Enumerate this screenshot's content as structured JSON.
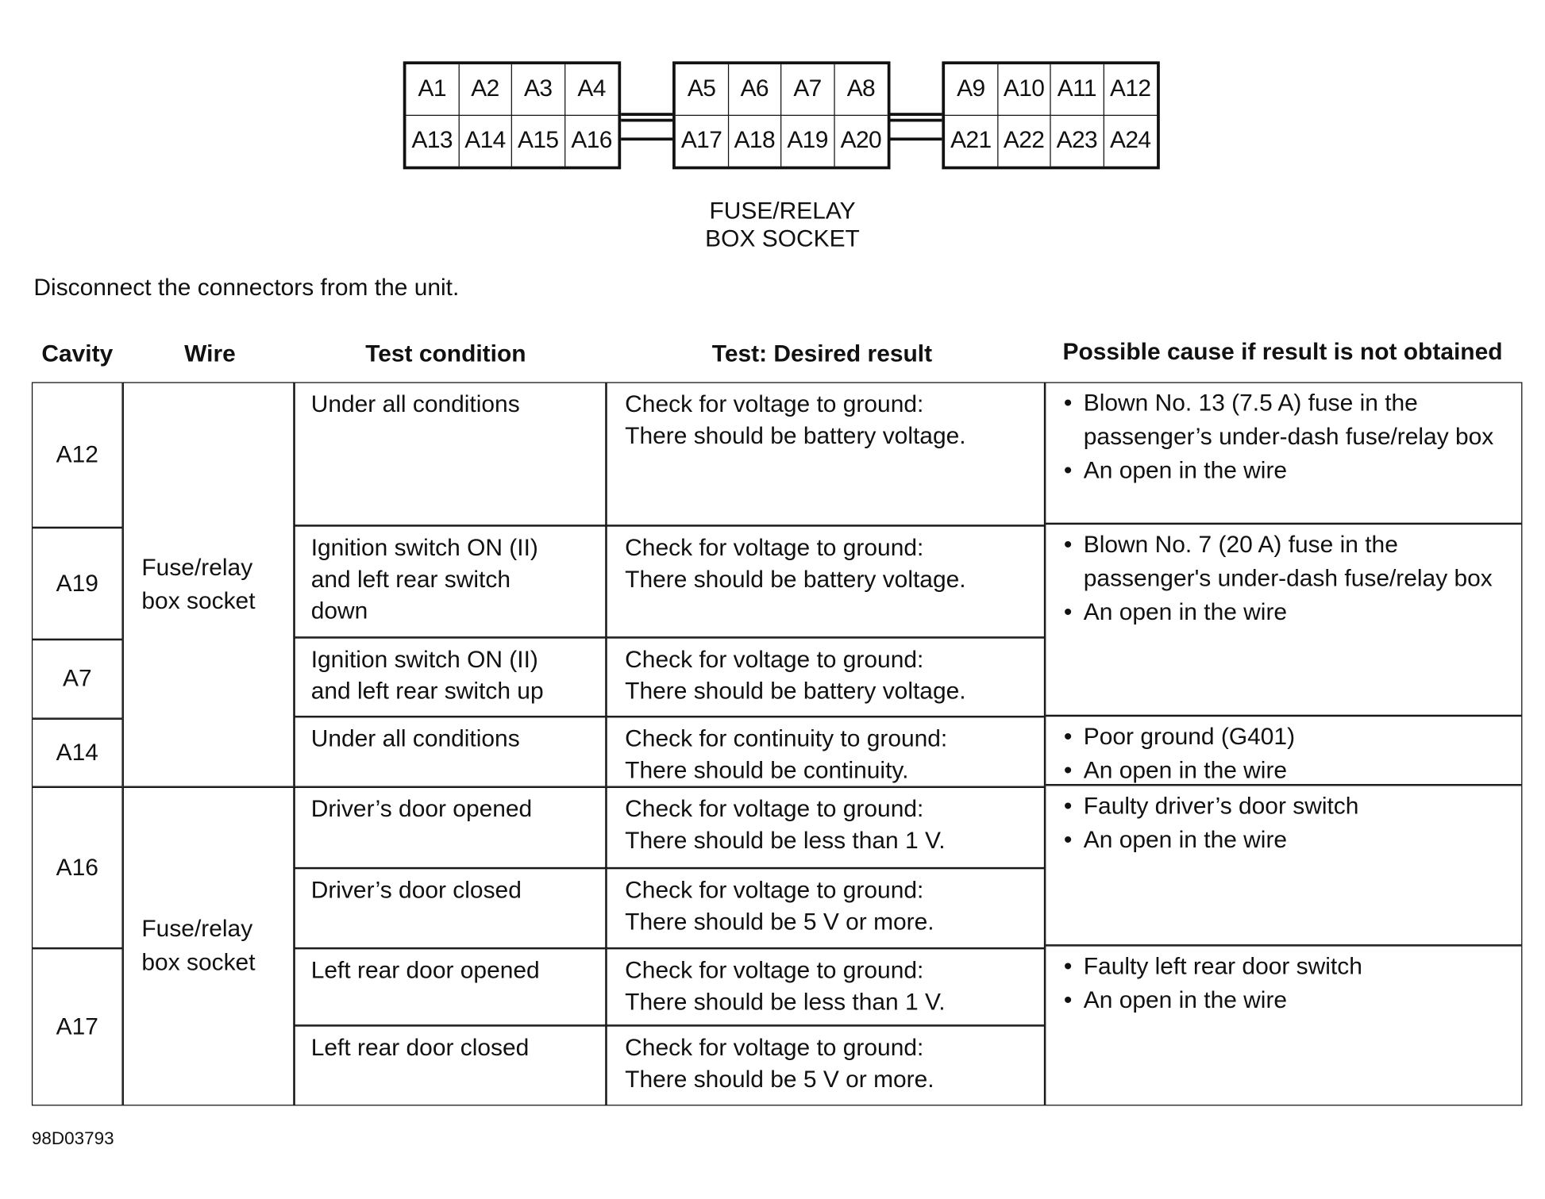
{
  "connector": {
    "groups": [
      {
        "top": [
          "A1",
          "A2",
          "A3",
          "A4"
        ],
        "bottom": [
          "A13",
          "A14",
          "A15",
          "A16"
        ]
      },
      {
        "top": [
          "A5",
          "A6",
          "A7",
          "A8"
        ],
        "bottom": [
          "A17",
          "A18",
          "A19",
          "A20"
        ]
      },
      {
        "top": [
          "A9",
          "A10",
          "A11",
          "A12"
        ],
        "bottom": [
          "A21",
          "A22",
          "A23",
          "A24"
        ]
      }
    ],
    "caption_line1": "FUSE/RELAY",
    "caption_line2": "BOX SOCKET"
  },
  "instruction": "Disconnect the connectors from the unit.",
  "table": {
    "headers": [
      "Cavity",
      "Wire",
      "Test condition",
      "Test: Desired result",
      "Possible cause if result is not obtained"
    ],
    "cavities": [
      "A12",
      "A19",
      "A7",
      "A14",
      "A16",
      "A17"
    ],
    "wires": [
      {
        "line1": "Fuse/relay",
        "line2": "box socket"
      },
      {
        "line1": "Fuse/relay",
        "line2": "box socket"
      }
    ],
    "tests": [
      {
        "condition": [
          "Under all conditions"
        ],
        "result": [
          "Check for voltage to ground:",
          "There should be battery voltage."
        ]
      },
      {
        "condition": [
          "Ignition switch ON (II)",
          "and left rear switch",
          "down"
        ],
        "result": [
          "Check for voltage to ground:",
          "There should be battery voltage."
        ]
      },
      {
        "condition": [
          "Ignition switch ON (II)",
          "and left rear switch up"
        ],
        "result": [
          "Check for voltage to ground:",
          "There should be battery voltage."
        ]
      },
      {
        "condition": [
          "Under all conditions"
        ],
        "result": [
          "Check for continuity to ground:",
          "There should be continuity."
        ]
      },
      {
        "condition": [
          "Driver’s door opened"
        ],
        "result": [
          "Check for voltage to ground:",
          "There should be less than 1 V."
        ]
      },
      {
        "condition": [
          "Driver’s door closed"
        ],
        "result": [
          "Check for voltage to ground:",
          "There should be 5 V or more."
        ]
      },
      {
        "condition": [
          "Left rear door opened"
        ],
        "result": [
          "Check for voltage to ground:",
          "There should be less than 1 V."
        ]
      },
      {
        "condition": [
          "Left rear door closed"
        ],
        "result": [
          "Check for voltage to ground:",
          "There should be 5 V or more."
        ]
      }
    ],
    "causes": [
      [
        "Blown No. 13 (7.5 A) fuse in the passenger’s under-dash fuse/relay box",
        "An open in the wire"
      ],
      [
        "Blown No. 7 (20 A) fuse in the passenger's under-dash fuse/relay box",
        "An open in the wire"
      ],
      [
        "Poor ground (G401)",
        "An open in the wire"
      ],
      [
        "Faulty driver’s door switch",
        "An open in the wire"
      ],
      [
        "Faulty left rear door switch",
        "An open in the wire"
      ]
    ]
  },
  "figure_id": "98D03793"
}
